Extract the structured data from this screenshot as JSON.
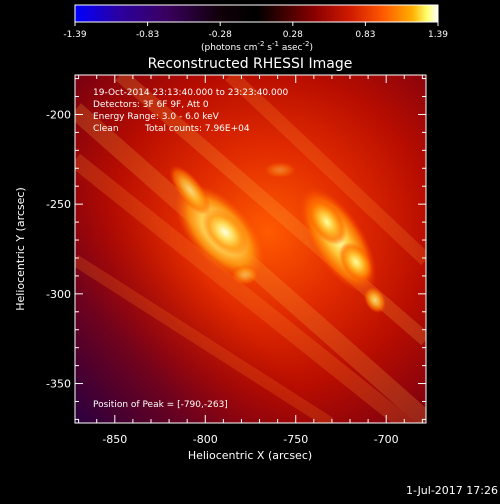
{
  "title": "Reconstructed RHESSI Image",
  "colorbar": {
    "ticks": [
      "-1.39",
      "-0.83",
      "-0.28",
      "0.28",
      "0.83",
      "1.39"
    ],
    "unit_parts": {
      "a": "(photons cm",
      "b": "-2",
      "c": " s",
      "d": "-1",
      "e": " asec",
      "f": "-2",
      "g": ")"
    },
    "colors": [
      "#0000ff",
      "#2a00a0",
      "#3a0060",
      "#100008",
      "#000000",
      "#300000",
      "#8a0000",
      "#d11b00",
      "#ff5a00",
      "#ffb000",
      "#ffff70",
      "#ffffff"
    ]
  },
  "annotations": {
    "time": "19-Oct-2014 23:13:40.000 to 23:23:40.000",
    "detectors": "Detectors: 3F 6F 9F, Att 0",
    "energy": "Energy Range: 3.0 - 6.0 keV",
    "clean": "Clean",
    "total_counts": "Total counts: 7.96E+04",
    "peak": "Position of Peak = [-790,-263]"
  },
  "axes": {
    "x_label": "Heliocentric X (arcsec)",
    "y_label": "Heliocentric Y (arcsec)",
    "x_ticks": [
      {
        "value": -850,
        "label": "-850"
      },
      {
        "value": -800,
        "label": "-800"
      },
      {
        "value": -750,
        "label": "-750"
      },
      {
        "value": -700,
        "label": "-700"
      }
    ],
    "y_ticks": [
      {
        "value": -200,
        "label": "-200"
      },
      {
        "value": -250,
        "label": "-250"
      },
      {
        "value": -300,
        "label": "-300"
      },
      {
        "value": -350,
        "label": "-350"
      }
    ],
    "x_range": [
      -872,
      -678
    ],
    "y_range": [
      -372,
      -178
    ]
  },
  "timestamp": "1-Jul-2017 17:26",
  "image_colors": {
    "hot": "#ffffa0",
    "bright": "#ff9a10",
    "mid": "#e12a00",
    "low": "#a00000",
    "deep": "#3a003a"
  }
}
